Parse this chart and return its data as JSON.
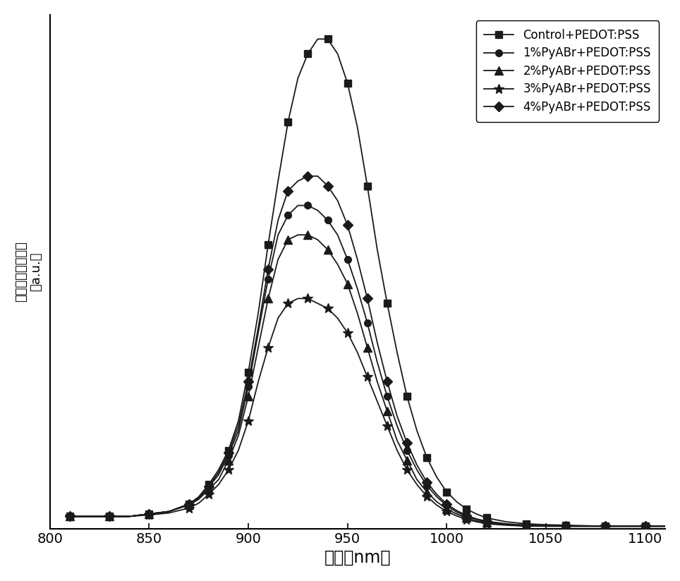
{
  "xlabel": "波长（nm）",
  "ylabel_parts": [
    "稳态光致发光强度",
    "（a.u.）"
  ],
  "xlim": [
    800,
    1110
  ],
  "xticks": [
    800,
    850,
    900,
    950,
    1000,
    1050,
    1100
  ],
  "legend_labels": [
    "Control+PEDOT:PSS",
    "1%PyABr+PEDOT:PSS",
    "2%PyABr+PEDOT:PSS",
    "3%PyABr+PEDOT:PSS",
    "4%PyABr+PEDOT:PSS"
  ],
  "markers": [
    "s",
    "o",
    "^",
    "*",
    "D"
  ],
  "markersizes": [
    7,
    7,
    8,
    10,
    7
  ],
  "line_color": "#1a1a1a",
  "background_color": "#ffffff",
  "linewidth": 1.3,
  "marker_every": 2,
  "curve_x": [
    810,
    820,
    830,
    840,
    850,
    860,
    870,
    875,
    880,
    885,
    890,
    895,
    900,
    905,
    910,
    915,
    920,
    925,
    930,
    935,
    940,
    945,
    950,
    955,
    960,
    965,
    970,
    975,
    980,
    985,
    990,
    995,
    1000,
    1005,
    1010,
    1015,
    1020,
    1030,
    1040,
    1050,
    1060,
    1070,
    1080,
    1090,
    1100,
    1110
  ],
  "control_y": [
    0.025,
    0.025,
    0.025,
    0.025,
    0.03,
    0.035,
    0.05,
    0.065,
    0.09,
    0.12,
    0.16,
    0.22,
    0.32,
    0.44,
    0.58,
    0.71,
    0.83,
    0.92,
    0.97,
    1.0,
    1.0,
    0.97,
    0.91,
    0.82,
    0.7,
    0.57,
    0.46,
    0.36,
    0.27,
    0.2,
    0.145,
    0.105,
    0.075,
    0.055,
    0.04,
    0.03,
    0.022,
    0.014,
    0.01,
    0.008,
    0.007,
    0.006,
    0.005,
    0.005,
    0.005,
    0.005
  ],
  "pct1_y": [
    0.025,
    0.025,
    0.025,
    0.025,
    0.03,
    0.035,
    0.05,
    0.062,
    0.085,
    0.11,
    0.15,
    0.2,
    0.29,
    0.4,
    0.51,
    0.6,
    0.64,
    0.66,
    0.66,
    0.65,
    0.63,
    0.6,
    0.55,
    0.49,
    0.42,
    0.34,
    0.27,
    0.21,
    0.16,
    0.12,
    0.088,
    0.065,
    0.047,
    0.034,
    0.025,
    0.019,
    0.014,
    0.009,
    0.007,
    0.006,
    0.005,
    0.005,
    0.005,
    0.005,
    0.005,
    0.005
  ],
  "pct2_y": [
    0.025,
    0.025,
    0.025,
    0.025,
    0.03,
    0.035,
    0.048,
    0.06,
    0.08,
    0.1,
    0.14,
    0.19,
    0.27,
    0.37,
    0.47,
    0.55,
    0.59,
    0.6,
    0.6,
    0.59,
    0.57,
    0.54,
    0.5,
    0.44,
    0.37,
    0.3,
    0.24,
    0.18,
    0.14,
    0.1,
    0.075,
    0.055,
    0.04,
    0.03,
    0.022,
    0.016,
    0.012,
    0.008,
    0.006,
    0.005,
    0.005,
    0.005,
    0.005,
    0.005,
    0.005,
    0.005
  ],
  "pct3_y": [
    0.025,
    0.025,
    0.025,
    0.025,
    0.028,
    0.032,
    0.042,
    0.052,
    0.07,
    0.09,
    0.12,
    0.16,
    0.22,
    0.3,
    0.37,
    0.43,
    0.46,
    0.47,
    0.47,
    0.46,
    0.45,
    0.43,
    0.4,
    0.36,
    0.31,
    0.26,
    0.21,
    0.16,
    0.12,
    0.09,
    0.066,
    0.048,
    0.035,
    0.026,
    0.019,
    0.014,
    0.01,
    0.007,
    0.005,
    0.005,
    0.005,
    0.005,
    0.005,
    0.005,
    0.005,
    0.005
  ],
  "pct4_y": [
    0.025,
    0.025,
    0.025,
    0.025,
    0.03,
    0.035,
    0.05,
    0.063,
    0.086,
    0.115,
    0.155,
    0.21,
    0.3,
    0.41,
    0.53,
    0.63,
    0.69,
    0.71,
    0.72,
    0.72,
    0.7,
    0.67,
    0.62,
    0.55,
    0.47,
    0.38,
    0.3,
    0.23,
    0.175,
    0.13,
    0.095,
    0.07,
    0.05,
    0.037,
    0.027,
    0.02,
    0.015,
    0.01,
    0.007,
    0.006,
    0.005,
    0.005,
    0.005,
    0.005,
    0.005,
    0.005
  ]
}
